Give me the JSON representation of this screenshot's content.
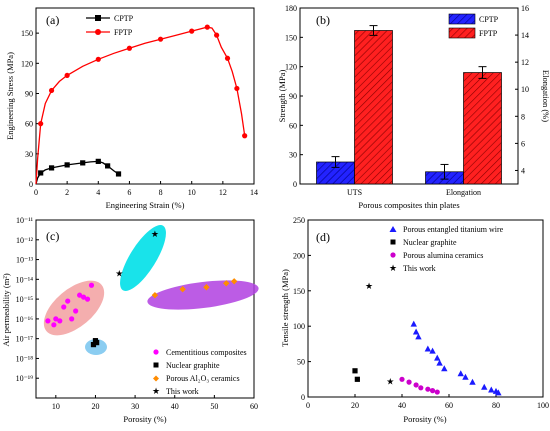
{
  "panel_labels": [
    "(a)",
    "(b)",
    "(c)",
    "(d)"
  ],
  "chart_data": [
    {
      "panel": "(a)",
      "type": "line",
      "xlabel": "Engineering Strain (%)",
      "ylabel": "Engineering Stress (MPa)",
      "xlim": [
        0,
        14
      ],
      "ylim": [
        0,
        175
      ],
      "xticks": [
        "0",
        "2",
        "4",
        "6",
        "8",
        "10",
        "12",
        "14"
      ],
      "yticks": [
        "0",
        "30",
        "60",
        "90",
        "120",
        "150"
      ],
      "legend_position": "top-left",
      "colors": {
        "CPTP": "#000000",
        "FPTP": "#ff0000"
      },
      "series": [
        {
          "name": "CPTP",
          "marker": "square",
          "x": [
            0,
            0.1,
            0.3,
            0.6,
            1.0,
            1.5,
            2.0,
            2.5,
            3.0,
            3.5,
            4.0,
            4.3,
            4.6,
            5.0,
            5.3
          ],
          "y": [
            0,
            6,
            11,
            14,
            16,
            17.5,
            19,
            20,
            21,
            22,
            22.5,
            21,
            18,
            13,
            10
          ]
        },
        {
          "name": "FPTP",
          "marker": "circle",
          "x": [
            0,
            0.1,
            0.3,
            0.6,
            1.0,
            1.5,
            2.0,
            3.0,
            4.0,
            5.0,
            6.0,
            7.0,
            8.0,
            9.0,
            10.0,
            10.5,
            11.0,
            11.3,
            11.6,
            11.9,
            12.3,
            12.6,
            12.9,
            13.2,
            13.4
          ],
          "y": [
            0,
            25,
            60,
            80,
            93,
            102,
            108,
            117,
            124,
            130,
            135,
            140,
            144,
            148,
            152,
            154,
            156,
            155,
            148,
            136,
            125,
            112,
            95,
            70,
            48
          ]
        }
      ]
    },
    {
      "panel": "(b)",
      "type": "bar",
      "categories": [
        "UTS",
        "Elongation"
      ],
      "xlabel": "Porous composites thin plates",
      "ylabel": "Strength (MPa)",
      "ylabel_right": "Elongation (%)",
      "ylim": [
        0,
        180
      ],
      "ylim_right": [
        3,
        16
      ],
      "yticks": [
        "0",
        "30",
        "60",
        "90",
        "120",
        "150",
        "180"
      ],
      "yticks_right": [
        "4",
        "6",
        "8",
        "10",
        "12",
        "14",
        "16"
      ],
      "legend_position": "top-right",
      "colors": {
        "CPTP": "#2323ff",
        "FPTP": "#ff2020"
      },
      "series": [
        {
          "name": "CPTP",
          "values": [
            22.5,
            12.5
          ],
          "errors": [
            5.5,
            7.5
          ]
        },
        {
          "name": "FPTP",
          "values": [
            157,
            114
          ],
          "errors": [
            5,
            6
          ]
        }
      ]
    },
    {
      "panel": "(c)",
      "type": "scatter",
      "xlabel": "Porosity (%)",
      "ylabel": "Air permeability (m²)",
      "xlim": [
        5,
        60
      ],
      "ylim_log10": [
        -20,
        -11
      ],
      "xticks": [
        "10",
        "20",
        "30",
        "40",
        "50",
        "60"
      ],
      "yticks": [
        "10⁻¹¹",
        "10⁻¹²",
        "10⁻¹³",
        "10⁻¹⁴",
        "10⁻¹⁵",
        "10⁻¹⁶",
        "10⁻¹⁷",
        "10⁻¹⁸",
        "10⁻¹⁹"
      ],
      "legend_position": "bottom-right",
      "series": [
        {
          "name": "Cementitious composites",
          "marker": "circle",
          "color": "#ff00ff",
          "x": [
            8,
            9.5,
            10,
            11,
            12,
            13,
            14,
            15,
            16,
            17,
            18,
            19
          ],
          "y_log10": [
            -16.1,
            -16.3,
            -16.0,
            -16.1,
            -15.4,
            -15.1,
            -16.0,
            -15.6,
            -14.8,
            -14.9,
            -15.0,
            -14.3
          ]
        },
        {
          "name": "Nuclear graphite",
          "marker": "square",
          "color": "#000000",
          "x": [
            19.5,
            20,
            20.3
          ],
          "y_log10": [
            -17.3,
            -17.1,
            -17.2
          ]
        },
        {
          "name": "Porous Al₂O₃ ceramics",
          "marker": "diamond",
          "color": "#ff8c00",
          "x": [
            35,
            42,
            48,
            53,
            55
          ],
          "y_log10": [
            -14.8,
            -14.5,
            -14.4,
            -14.2,
            -14.1
          ]
        },
        {
          "name": "This work",
          "marker": "star",
          "color": "#cc0000",
          "x": [
            26,
            35
          ],
          "y_log10": [
            -13.7,
            -11.7
          ]
        }
      ]
    },
    {
      "panel": "(d)",
      "type": "scatter",
      "xlabel": "Porosity (%)",
      "ylabel": "Tensile strength (MPa)",
      "xlim": [
        0,
        100
      ],
      "ylim": [
        0,
        250
      ],
      "xticks": [
        "0",
        "20",
        "40",
        "60",
        "80",
        "100"
      ],
      "yticks": [
        "0",
        "50",
        "100",
        "150",
        "200",
        "250"
      ],
      "legend_position": "top-right",
      "series": [
        {
          "name": "Porous entangled titanium wire",
          "marker": "triangle",
          "color": "#1a1aff",
          "x": [
            45,
            46,
            47,
            51,
            53,
            55,
            56,
            58,
            65,
            67,
            70,
            75,
            78,
            80,
            81
          ],
          "y": [
            103,
            92,
            85,
            68,
            65,
            55,
            48,
            40,
            33,
            28,
            21,
            14,
            10,
            8,
            6
          ]
        },
        {
          "name": "Nuclear graphite",
          "marker": "square",
          "color": "#000000",
          "x": [
            20,
            21
          ],
          "y": [
            37,
            25
          ]
        },
        {
          "name": "Porous alumina ceramics",
          "marker": "circle",
          "color": "#cc00cc",
          "x": [
            40,
            43,
            46,
            48,
            51,
            53,
            55
          ],
          "y": [
            25,
            21,
            17,
            13,
            11,
            9,
            7
          ]
        },
        {
          "name": "This work",
          "marker": "star",
          "color": "#ff0000",
          "x": [
            26,
            35
          ],
          "y": [
            157,
            22
          ]
        }
      ]
    }
  ]
}
